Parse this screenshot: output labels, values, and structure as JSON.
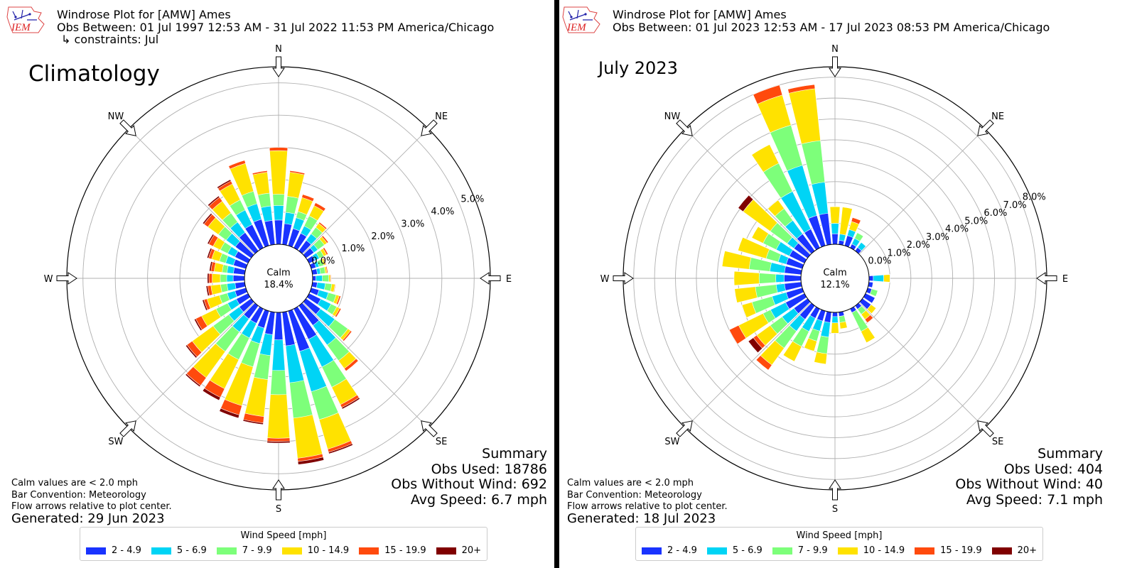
{
  "colors": [
    "#1933ff",
    "#00d4f5",
    "#7dff7a",
    "#ffe200",
    "#ff4a0d",
    "#800000"
  ],
  "legend": {
    "title": "Wind Speed [mph]",
    "labels": [
      "2 - 4.9",
      "5 - 6.9",
      "7 - 9.9",
      "10 - 14.9",
      "15 - 19.9",
      "20+"
    ]
  },
  "directions": [
    "N",
    "NE",
    "E",
    "SE",
    "S",
    "SW",
    "W",
    "NW"
  ],
  "panels": [
    {
      "header": {
        "title": "Windrose Plot for [AMW] Ames",
        "obs_between": "Obs Between: 01 Jul 1997 12:53 AM - 31 Jul 2022 11:53 PM America/Chicago",
        "constraints": "↳ constraints: Jul"
      },
      "big_title": "Climatology",
      "calm_label": "Calm",
      "calm_value": "18.4%",
      "ring_labels": [
        "0.0%",
        "1.0%",
        "2.0%",
        "3.0%",
        "4.0%",
        "5.0%"
      ],
      "notes": [
        "Calm values are < 2.0 mph",
        "Bar Convention: Meteorology",
        "Flow arrows relative to plot center."
      ],
      "generated": "Generated: 29 Jun 2023",
      "summary": [
        "Summary",
        "Obs Used: 18786",
        "Obs Without Wind: 692",
        "Avg Speed: 6.7 mph"
      ]
    },
    {
      "header": {
        "title": "Windrose Plot for [AMW] Ames",
        "obs_between": "Obs Between: 01 Jul 2023 12:53 AM - 17 Jul 2023 08:53 PM America/Chicago",
        "constraints": ""
      },
      "big_title": "July 2023",
      "calm_label": "Calm",
      "calm_value": "12.1%",
      "ring_labels": [
        "0.0%",
        "1.0%",
        "2.0%",
        "3.0%",
        "4.0%",
        "5.0%",
        "6.0%",
        "7.0%",
        "8.0%"
      ],
      "notes": [
        "Calm values are < 2.0 mph",
        "Bar Convention: Meteorology",
        "Flow arrows relative to plot center."
      ],
      "generated": "Generated: 18 Jul 2023",
      "summary": [
        "Summary",
        "Obs Used: 404",
        "Obs Without Wind: 40",
        "Avg Speed: 7.1 mph"
      ]
    }
  ],
  "chart_data": [
    {
      "type": "windrose",
      "title": "Climatology",
      "calm_percent": 18.4,
      "rlim": [
        0,
        5.5
      ],
      "rticks": [
        0,
        1,
        2,
        3,
        4,
        5
      ],
      "direction_step_deg": 10,
      "direction_start_deg": 0,
      "speed_bins": [
        "2 - 4.9",
        "5 - 6.9",
        "7 - 9.9",
        "10 - 14.9",
        "15 - 19.9",
        "20+"
      ],
      "cumulative_percent": [
        [
          0.75,
          1.2,
          1.55,
          2.9,
          3.0,
          3.0
        ],
        [
          0.65,
          1.0,
          1.5,
          2.25,
          2.3,
          2.3
        ],
        [
          0.55,
          0.9,
          1.1,
          1.55,
          1.65,
          1.65
        ],
        [
          0.5,
          0.75,
          1.1,
          1.45,
          1.55,
          1.55
        ],
        [
          0.4,
          0.65,
          0.9,
          1.05,
          1.1,
          1.1
        ],
        [
          0.3,
          0.45,
          0.7,
          0.8,
          0.85,
          0.85
        ],
        [
          0.2,
          0.35,
          0.5,
          0.6,
          0.65,
          0.65
        ],
        [
          0.15,
          0.25,
          0.4,
          0.45,
          0.48,
          0.48
        ],
        [
          0.15,
          0.25,
          0.4,
          0.45,
          0.48,
          0.48
        ],
        [
          0.1,
          0.3,
          0.5,
          0.55,
          0.57,
          0.57
        ],
        [
          0.15,
          0.4,
          0.6,
          0.7,
          0.72,
          0.72
        ],
        [
          0.25,
          0.55,
          0.8,
          0.9,
          0.95,
          0.95
        ],
        [
          0.4,
          0.75,
          0.95,
          1.05,
          1.1,
          1.1
        ],
        [
          0.55,
          1.1,
          1.6,
          1.7,
          1.75,
          1.75
        ],
        [
          0.75,
          1.5,
          2.1,
          2.4,
          2.5,
          2.5
        ],
        [
          1.05,
          2.0,
          2.7,
          3.3,
          3.4,
          3.45
        ],
        [
          1.3,
          2.6,
          3.5,
          4.45,
          4.55,
          4.6
        ],
        [
          1.05,
          2.2,
          3.3,
          4.55,
          4.65,
          4.75
        ],
        [
          0.85,
          1.8,
          2.55,
          3.9,
          4.0,
          4.05
        ],
        [
          0.7,
          1.35,
          2.1,
          3.25,
          3.45,
          3.5
        ],
        [
          0.55,
          1.05,
          1.8,
          3.05,
          3.35,
          3.45
        ],
        [
          0.5,
          1.0,
          1.75,
          2.75,
          3.05,
          3.15
        ],
        [
          0.5,
          1.0,
          1.75,
          2.75,
          3.05,
          3.1
        ],
        [
          0.45,
          0.85,
          1.45,
          2.25,
          2.45,
          2.5
        ],
        [
          0.4,
          0.7,
          1.1,
          1.6,
          1.8,
          1.85
        ],
        [
          0.35,
          0.6,
          0.85,
          1.25,
          1.35,
          1.4
        ],
        [
          0.3,
          0.55,
          0.75,
          1.05,
          1.15,
          1.2
        ],
        [
          0.35,
          0.55,
          0.75,
          1.0,
          1.1,
          1.15
        ],
        [
          0.35,
          0.55,
          0.7,
          0.95,
          1.05,
          1.1
        ],
        [
          0.4,
          0.65,
          0.85,
          1.1,
          1.2,
          1.25
        ],
        [
          0.45,
          0.7,
          0.95,
          1.2,
          1.35,
          1.4
        ],
        [
          0.6,
          0.95,
          1.25,
          1.65,
          1.8,
          1.85
        ],
        [
          0.7,
          1.1,
          1.45,
          1.9,
          2.05,
          2.1
        ],
        [
          0.8,
          1.3,
          1.65,
          2.2,
          2.3,
          2.35
        ],
        [
          0.85,
          1.35,
          1.75,
          2.65,
          2.75,
          2.75
        ],
        [
          0.75,
          1.2,
          1.6,
          2.25,
          2.3,
          2.3
        ]
      ]
    },
    {
      "type": "windrose",
      "title": "July 2023",
      "calm_percent": 12.1,
      "rlim": [
        0,
        8.5
      ],
      "rticks": [
        0,
        1,
        2,
        3,
        4,
        5,
        6,
        7,
        8
      ],
      "direction_step_deg": 10,
      "direction_start_deg": 0,
      "speed_bins": [
        "2 - 4.9",
        "5 - 6.9",
        "7 - 9.9",
        "10 - 14.9",
        "15 - 19.9",
        "20+"
      ],
      "cumulative_percent": [
        [
          0.5,
          1.0,
          1.0,
          1.8,
          1.8,
          1.8
        ],
        [
          0.2,
          0.5,
          0.5,
          1.8,
          1.8,
          1.8
        ],
        [
          0.5,
          0.8,
          0.8,
          1.2,
          1.4,
          1.4
        ],
        [
          0.2,
          0.5,
          0.8,
          0.8,
          0.8,
          0.8
        ],
        [
          0.2,
          0.5,
          0.5,
          0.5,
          0.5,
          0.5
        ],
        [
          0,
          0,
          0,
          0,
          0,
          0
        ],
        [
          0,
          0,
          0,
          0,
          0,
          0
        ],
        [
          0,
          0,
          0,
          0,
          0,
          0
        ],
        [
          0,
          0,
          0,
          0,
          0,
          0
        ],
        [
          0.2,
          0.7,
          0.7,
          1.0,
          1.0,
          1.0
        ],
        [
          0.2,
          0.2,
          0.2,
          0.2,
          0.2,
          0.2
        ],
        [
          0.2,
          0.2,
          0.5,
          0.5,
          0.5,
          0.5
        ],
        [
          0.5,
          0.5,
          0.5,
          0.5,
          0.5,
          0.5
        ],
        [
          0.5,
          0.5,
          0.5,
          0.8,
          0.8,
          0.8
        ],
        [
          0.2,
          0.2,
          0.5,
          0.8,
          1.0,
          1.0
        ],
        [
          0.2,
          0.2,
          1.2,
          1.8,
          1.8,
          1.8
        ],
        [
          0,
          0,
          0,
          0,
          0,
          0
        ],
        [
          0.2,
          0.2,
          0.5,
          0.8,
          0.8,
          0.8
        ],
        [
          0.2,
          0.5,
          0.5,
          1.0,
          1.0,
          1.0
        ],
        [
          0.5,
          1.2,
          2.0,
          2.5,
          2.5,
          2.5
        ],
        [
          0.5,
          1.0,
          1.5,
          2.0,
          2.0,
          2.0
        ],
        [
          0.5,
          1.2,
          2.0,
          2.8,
          2.8,
          2.8
        ],
        [
          0.8,
          1.5,
          2.5,
          3.5,
          3.8,
          3.8
        ],
        [
          0.8,
          1.5,
          2.2,
          3.0,
          3.2,
          3.5
        ],
        [
          1.0,
          1.8,
          2.2,
          3.5,
          4.0,
          4.0
        ],
        [
          0.8,
          1.5,
          2.5,
          3.0,
          3.0,
          3.0
        ],
        [
          0.8,
          1.2,
          2.2,
          3.2,
          3.2,
          3.2
        ],
        [
          0.8,
          1.2,
          2.0,
          3.2,
          3.2,
          3.2
        ],
        [
          0.8,
          1.5,
          2.5,
          3.8,
          3.8,
          3.8
        ],
        [
          0.8,
          1.2,
          1.8,
          3.2,
          3.2,
          3.2
        ],
        [
          0.8,
          1.5,
          2.2,
          2.8,
          2.8,
          2.8
        ],
        [
          0.8,
          1.2,
          2.2,
          3.8,
          3.8,
          4.1
        ],
        [
          1.0,
          1.8,
          2.5,
          3.0,
          3.0,
          3.0
        ],
        [
          1.0,
          3.0,
          4.5,
          5.5,
          5.5,
          5.5
        ],
        [
          1.5,
          4.0,
          6.0,
          7.5,
          8.0,
          8.0
        ],
        [
          1.5,
          3.0,
          5.0,
          7.5,
          7.7,
          7.7
        ]
      ]
    }
  ]
}
